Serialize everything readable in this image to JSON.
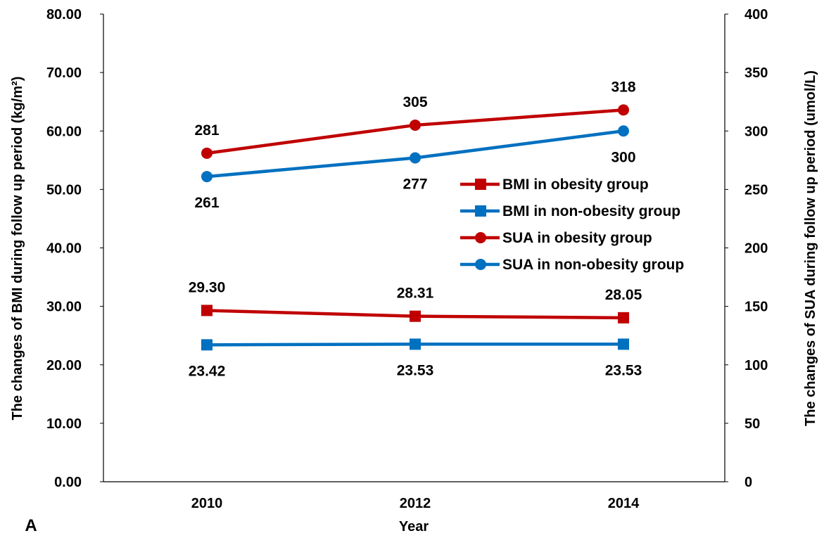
{
  "chart_data": {
    "type": "line",
    "panel_label": "A",
    "title": "",
    "xlabel": "Year",
    "ylabel_left": "The changes of BMI during follow up period (kg/m²)",
    "ylabel_right": "The changes of SUA during follow up period (umol/L)",
    "categories": [
      "2010",
      "2012",
      "2014"
    ],
    "ylim_left": [
      0,
      80
    ],
    "ylim_right": [
      0,
      400
    ],
    "yticks_left": [
      "0.00",
      "10.00",
      "20.00",
      "30.00",
      "40.00",
      "50.00",
      "60.00",
      "70.00",
      "80.00"
    ],
    "yticks_right": [
      "0",
      "50",
      "100",
      "150",
      "200",
      "250",
      "300",
      "350",
      "400"
    ],
    "grid": false,
    "legend_position": "right-middle",
    "series": [
      {
        "name": "BMI in obesity group",
        "axis": "left",
        "marker": "square",
        "color": "#C00000",
        "values": [
          29.3,
          28.31,
          28.05
        ],
        "labels": [
          "29.30",
          "28.31",
          "28.05"
        ],
        "label_position": "above"
      },
      {
        "name": "BMI in non-obesity group",
        "axis": "left",
        "marker": "square",
        "color": "#0070C0",
        "values": [
          23.42,
          23.53,
          23.53
        ],
        "labels": [
          "23.42",
          "23.53",
          "23.53"
        ],
        "label_position": "below"
      },
      {
        "name": "SUA in obesity group",
        "axis": "right",
        "marker": "circle",
        "color": "#C00000",
        "values": [
          281,
          305,
          318
        ],
        "labels": [
          "281",
          "305",
          "318"
        ],
        "label_position": "above"
      },
      {
        "name": "SUA in non-obesity group",
        "axis": "right",
        "marker": "circle",
        "color": "#0070C0",
        "values": [
          261,
          277,
          300
        ],
        "labels": [
          "261",
          "277",
          "300"
        ],
        "label_position": "below"
      }
    ]
  }
}
